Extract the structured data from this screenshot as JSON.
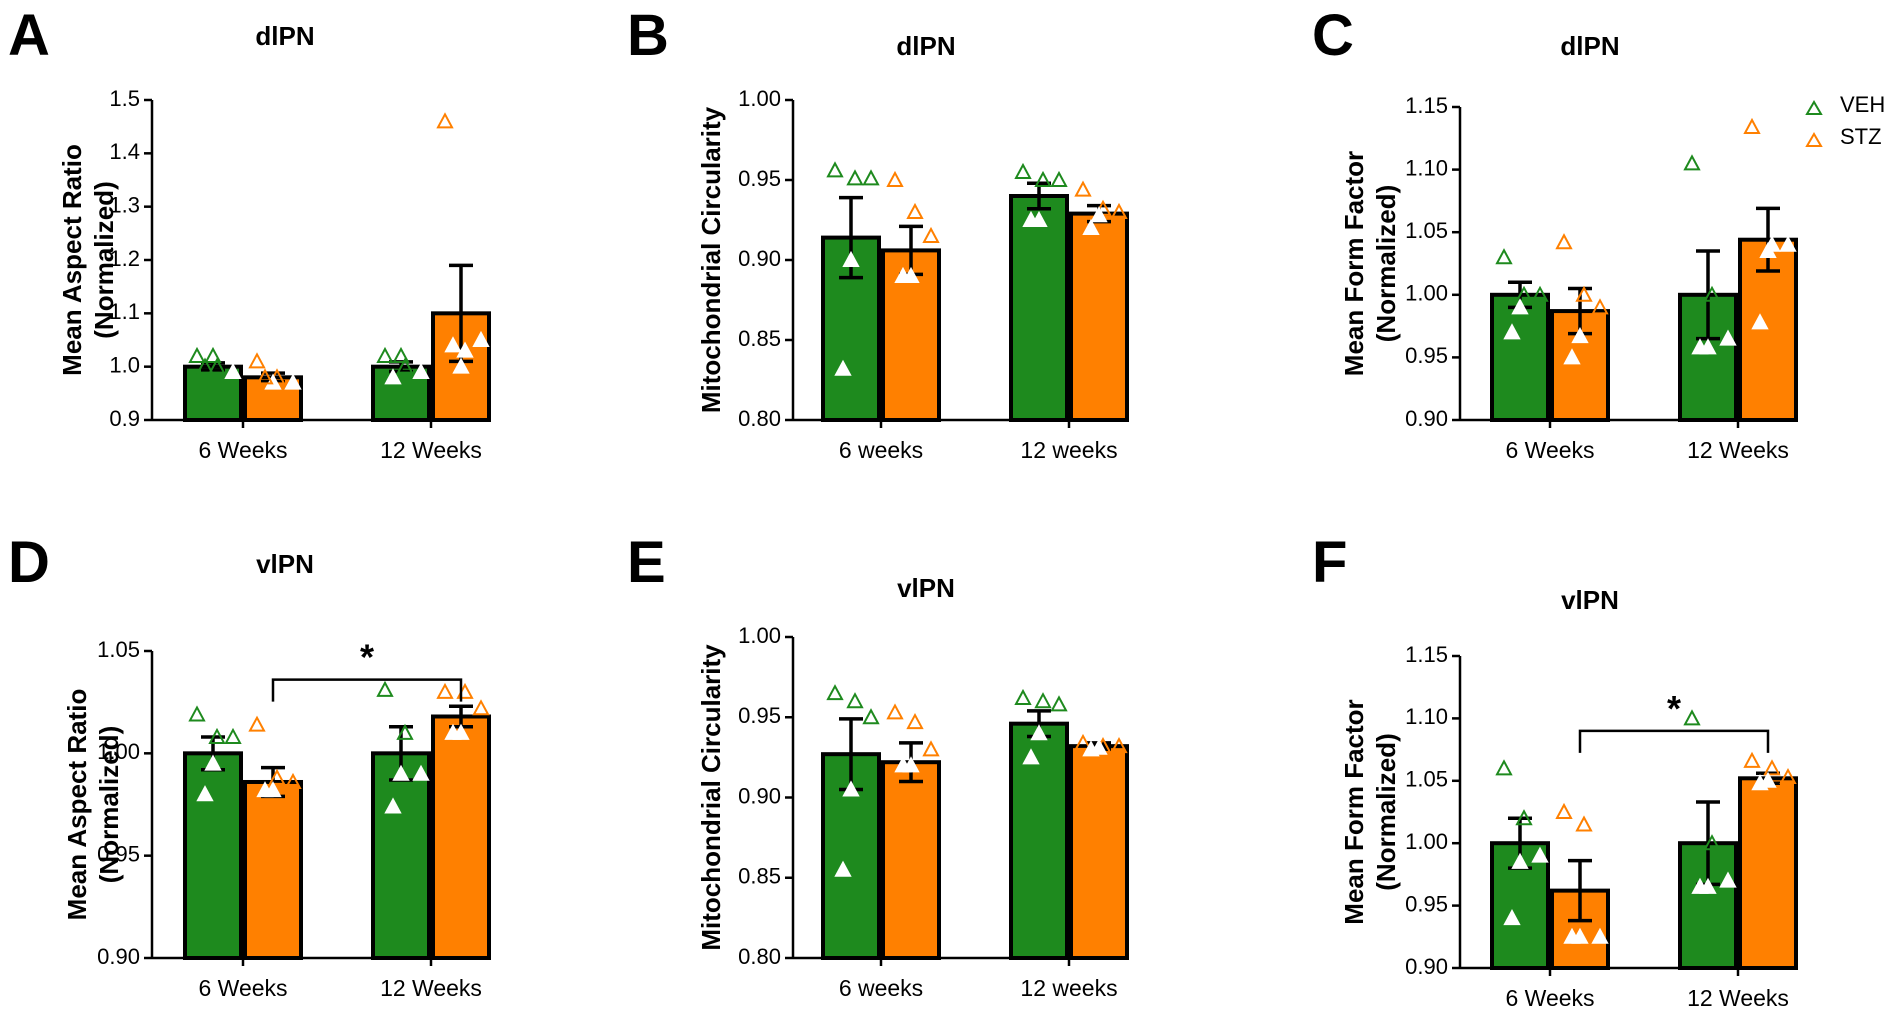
{
  "colors": {
    "veh": "#1e8a1e",
    "stz": "#ff8000",
    "axis": "#000000"
  },
  "legend": [
    {
      "name": "VEH",
      "color": "#1e8a1e"
    },
    {
      "name": "STZ",
      "color": "#ff8000"
    }
  ],
  "chart_data": [
    {
      "letter": "A",
      "type": "bar",
      "title": "dlPN",
      "ylabel": [
        "Mean Aspect Ratio",
        "(Normalized)"
      ],
      "ylim": [
        0.9,
        1.5
      ],
      "yticks": [
        "0.9",
        "1.0",
        "1.1",
        "1.2",
        "1.3",
        "1.4",
        "1.5"
      ],
      "categories": [
        "6 Weeks",
        "12 Weeks"
      ],
      "series": [
        {
          "name": "VEH",
          "values": [
            1.0,
            1.0
          ],
          "sem": [
            0.007,
            0.009
          ],
          "points": [
            [
              1.02,
              1.0,
              0.99,
              1.02,
              1.0
            ],
            [
              1.02,
              1.0,
              0.99,
              1.02,
              0.98
            ]
          ]
        },
        {
          "name": "STZ",
          "values": [
            0.98,
            1.1
          ],
          "sem": [
            0.008,
            0.09
          ],
          "points": [
            [
              1.01,
              0.98,
              0.97,
              0.97,
              0.98
            ],
            [
              1.46,
              1.03,
              1.05,
              1.0,
              1.04
            ]
          ]
        }
      ]
    },
    {
      "letter": "B",
      "type": "bar",
      "title": "dlPN",
      "ylabel": [
        "Mitochondrial Circularity"
      ],
      "ylim": [
        0.8,
        1.0
      ],
      "yticks": [
        "0.80",
        "0.85",
        "0.90",
        "0.95",
        "1.00"
      ],
      "categories": [
        "6 weeks",
        "12 weeks"
      ],
      "series": [
        {
          "name": "VEH",
          "values": [
            0.914,
            0.94
          ],
          "sem": [
            0.025,
            0.008
          ],
          "points": [
            [
              0.956,
              0.951,
              0.951,
              0.9,
              0.832
            ],
            [
              0.955,
              0.95,
              0.95,
              0.925,
              0.925
            ]
          ]
        },
        {
          "name": "STZ",
          "values": [
            0.906,
            0.929
          ],
          "sem": [
            0.015,
            0.005
          ],
          "points": [
            [
              0.95,
              0.93,
              0.915,
              0.89,
              0.89
            ],
            [
              0.944,
              0.932,
              0.93,
              0.928,
              0.92
            ]
          ]
        }
      ]
    },
    {
      "letter": "C",
      "type": "bar",
      "title": "dlPN",
      "ylabel": [
        "Mean Form Factor",
        "(Normalized)"
      ],
      "ylim": [
        0.9,
        1.15
      ],
      "yticks": [
        "0.90",
        "0.95",
        "1.00",
        "1.05",
        "1.10",
        "1.15"
      ],
      "categories": [
        "6 Weeks",
        "12 Weeks"
      ],
      "series": [
        {
          "name": "VEH",
          "values": [
            1.0,
            1.0
          ],
          "sem": [
            0.01,
            0.035
          ],
          "points": [
            [
              1.03,
              1.0,
              1.0,
              0.99,
              0.97
            ],
            [
              1.105,
              1.0,
              0.965,
              0.958,
              0.958
            ]
          ]
        },
        {
          "name": "STZ",
          "values": [
            0.987,
            1.044
          ],
          "sem": [
            0.018,
            0.025
          ],
          "points": [
            [
              1.042,
              1.0,
              0.99,
              0.967,
              0.95
            ],
            [
              1.134,
              1.04,
              1.04,
              1.035,
              0.978
            ]
          ]
        }
      ]
    },
    {
      "letter": "D",
      "type": "bar",
      "title": "vlPN",
      "ylabel": [
        "Mean Aspect Ratio",
        "(Normalized)"
      ],
      "ylim": [
        0.9,
        1.05
      ],
      "yticks": [
        "0.90",
        "0.95",
        "1.00",
        "1.05"
      ],
      "categories": [
        "6 Weeks",
        "12 Weeks"
      ],
      "series": [
        {
          "name": "VEH",
          "values": [
            1.0,
            1.0
          ],
          "sem": [
            0.008,
            0.013
          ],
          "points": [
            [
              1.019,
              1.008,
              1.008,
              0.995,
              0.98
            ],
            [
              1.031,
              1.01,
              0.99,
              0.99,
              0.974
            ]
          ]
        },
        {
          "name": "STZ",
          "values": [
            0.986,
            1.018
          ],
          "sem": [
            0.007,
            0.005
          ],
          "points": [
            [
              1.014,
              0.988,
              0.986,
              0.982,
              0.982
            ],
            [
              1.03,
              1.03,
              1.022,
              1.01,
              1.01
            ]
          ]
        }
      ],
      "significance": {
        "label": "*",
        "from": [
          0,
          1
        ],
        "to": [
          1,
          1
        ],
        "y": 1.036
      }
    },
    {
      "letter": "E",
      "type": "bar",
      "title": "vlPN",
      "ylabel": [
        "Mitochondrial Circularity"
      ],
      "ylim": [
        0.8,
        1.0
      ],
      "yticks": [
        "0.80",
        "0.85",
        "0.90",
        "0.95",
        "1.00"
      ],
      "categories": [
        "6 weeks",
        "12 weeks"
      ],
      "series": [
        {
          "name": "VEH",
          "values": [
            0.927,
            0.946
          ],
          "sem": [
            0.022,
            0.008
          ],
          "points": [
            [
              0.965,
              0.96,
              0.95,
              0.905,
              0.855
            ],
            [
              0.962,
              0.96,
              0.958,
              0.94,
              0.925
            ]
          ]
        },
        {
          "name": "STZ",
          "values": [
            0.922,
            0.932
          ],
          "sem": [
            0.012,
            0.002
          ],
          "points": [
            [
              0.953,
              0.947,
              0.93,
              0.92,
              0.92
            ],
            [
              0.934,
              0.932,
              0.932,
              0.931,
              0.93
            ]
          ]
        }
      ]
    },
    {
      "letter": "F",
      "type": "bar",
      "title": "vlPN",
      "ylabel": [
        "Mean Form Factor",
        "(Normalized)"
      ],
      "ylim": [
        0.9,
        1.15
      ],
      "yticks": [
        "0.90",
        "0.95",
        "1.00",
        "1.05",
        "1.10",
        "1.15"
      ],
      "categories": [
        "6 Weeks",
        "12 Weeks"
      ],
      "series": [
        {
          "name": "VEH",
          "values": [
            1.0,
            1.0
          ],
          "sem": [
            0.02,
            0.033
          ],
          "points": [
            [
              1.06,
              1.02,
              0.99,
              0.985,
              0.94
            ],
            [
              1.1,
              1.0,
              0.97,
              0.965,
              0.965
            ]
          ]
        },
        {
          "name": "STZ",
          "values": [
            0.962,
            1.052
          ],
          "sem": [
            0.024,
            0.004
          ],
          "points": [
            [
              1.025,
              1.015,
              0.925,
              0.925,
              0.925
            ],
            [
              1.066,
              1.06,
              1.053,
              1.05,
              1.048
            ]
          ]
        }
      ],
      "significance": {
        "label": "*",
        "from": [
          0,
          1
        ],
        "to": [
          1,
          1
        ],
        "y": 1.09
      }
    }
  ]
}
